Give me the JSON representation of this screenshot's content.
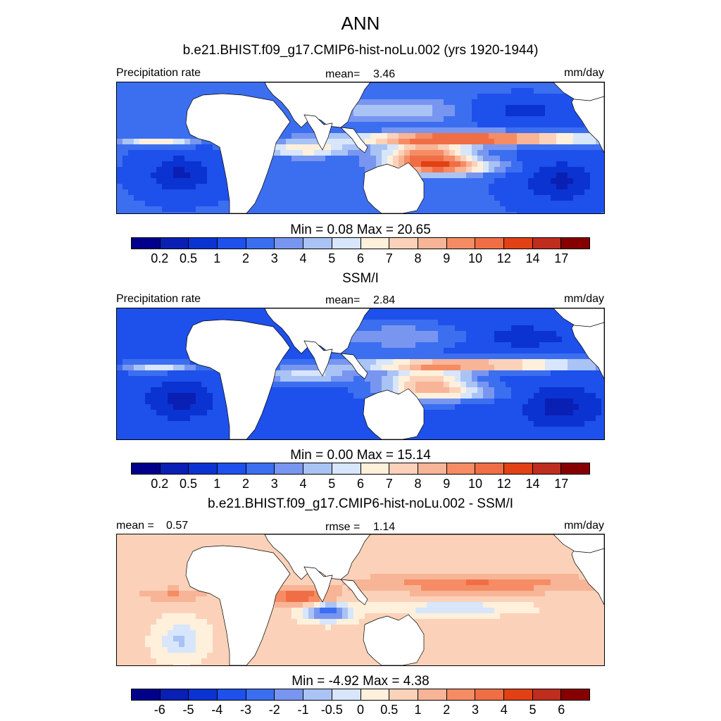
{
  "figure": {
    "title": "ANN",
    "subtitle": "b.e21.BHIST.f09_g17.CMIP6-hist-noLu.002 (yrs 1920-1944)",
    "section2_title": "SSM/I",
    "section3_title": "b.e21.BHIST.f09_g17.CMIP6-hist-noLu.002 - SSM/I"
  },
  "colors": {
    "precip_scale": [
      "#00008b",
      "#0a1fb4",
      "#0a33d2",
      "#1e50eb",
      "#3c6ef0",
      "#7896f0",
      "#aac3f5",
      "#d7e6fa",
      "#fff0dc",
      "#fbd2b9",
      "#f8b496",
      "#f58c64",
      "#f06e46",
      "#e14114",
      "#be2d1e",
      "#870000"
    ],
    "diff_scale": [
      "#00008b",
      "#0a1fb4",
      "#0a33d2",
      "#1e50eb",
      "#3c6ef0",
      "#7896f0",
      "#aac3f5",
      "#d7e6fa",
      "#fff0dc",
      "#fbd2b9",
      "#f8b496",
      "#f58c64",
      "#f06e46",
      "#e14114",
      "#be2d1e",
      "#870000"
    ],
    "land": "#ffffff",
    "coast": "#000000"
  },
  "chart_data": [
    {
      "type": "heatmap",
      "title": "",
      "left_label": "Precipitation rate",
      "center_label": "mean=",
      "center_value": "3.46",
      "units": "mm/day",
      "colorbar_title": "Min =   0.08 Max =  20.65",
      "min": 0.08,
      "max": 20.65,
      "mean": 3.46,
      "levels": [
        "0.2",
        "0.5",
        "1",
        "2",
        "3",
        "4",
        "5",
        "6",
        "7",
        "8",
        "9",
        "10",
        "12",
        "14",
        "17"
      ]
    },
    {
      "type": "heatmap",
      "title": "SSM/I",
      "left_label": "Precipitation rate",
      "center_label": "mean=",
      "center_value": "2.84",
      "units": "mm/day",
      "colorbar_title": "Min =   0.00 Max =  15.14",
      "min": 0.0,
      "max": 15.14,
      "mean": 2.84,
      "levels": [
        "0.2",
        "0.5",
        "1",
        "2",
        "3",
        "4",
        "5",
        "6",
        "7",
        "8",
        "9",
        "10",
        "12",
        "14",
        "17"
      ]
    },
    {
      "type": "heatmap",
      "title": "b.e21.BHIST.f09_g17.CMIP6-hist-noLu.002 - SSM/I",
      "left_label": "mean =",
      "left_value": "0.57",
      "center_label": "rmse =",
      "center_value": "1.14",
      "units": "mm/day",
      "colorbar_title": "Min =  -4.92 Max =   4.38",
      "min": -4.92,
      "max": 4.38,
      "mean": 0.57,
      "rmse": 1.14,
      "levels": [
        "-6",
        "-5",
        "-4",
        "-3",
        "-2",
        "-1",
        "-0.5",
        "0",
        "0.5",
        "1",
        "2",
        "3",
        "4",
        "5",
        "6"
      ]
    }
  ]
}
